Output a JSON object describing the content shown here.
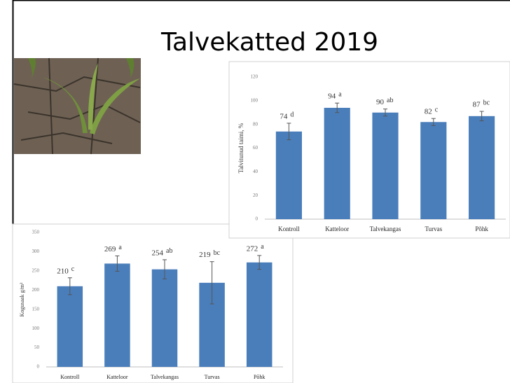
{
  "title": "Talvekatted 2019",
  "chart_data": [
    {
      "type": "bar",
      "ylabel": "Talvitunud taimi, %",
      "categories": [
        "Kontroll",
        "Katteloor",
        "Talvekangas",
        "Turvas",
        "Põhk"
      ],
      "values": [
        74,
        94,
        90,
        82,
        87
      ],
      "errors": [
        7,
        4,
        3,
        3,
        4
      ],
      "letters": [
        "d",
        "a",
        "ab",
        "c",
        "bc"
      ],
      "color": "#4a7ebb",
      "ylim": [
        0,
        120
      ],
      "yticks": [
        0,
        20,
        40,
        60,
        80,
        100,
        120
      ],
      "grid": false
    },
    {
      "type": "bar",
      "ylabel": "Kogusaak g/m²",
      "categories": [
        "Kontroll",
        "Katteloor",
        "Talvekangas",
        "Turvas",
        "Põhk"
      ],
      "values": [
        210,
        269,
        254,
        219,
        272
      ],
      "errors": [
        22,
        20,
        25,
        55,
        18
      ],
      "letters": [
        "c",
        "a",
        "ab",
        "bc",
        "a"
      ],
      "color": "#4a7ebb",
      "ylim": [
        0,
        350
      ],
      "yticks": [
        0,
        50,
        100,
        150,
        200,
        250,
        300,
        350
      ],
      "grid": false
    }
  ]
}
